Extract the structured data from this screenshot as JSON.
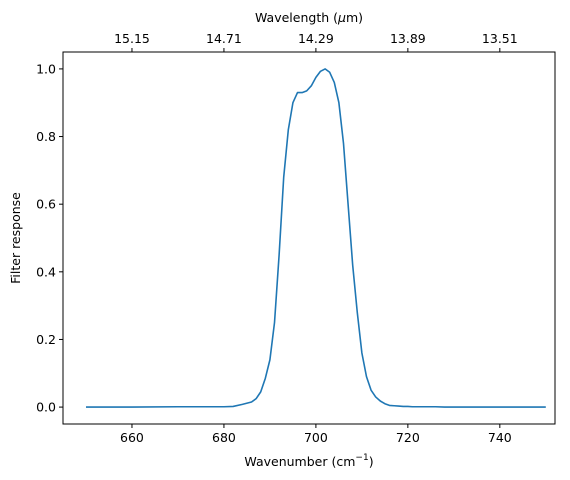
{
  "chart_data": {
    "type": "line",
    "xlabel": "Wavenumber (cm",
    "xlabel_sup": "−1",
    "xlabel_close": ")",
    "ylabel": "Filter response",
    "top_xlabel_pre": "Wavelength (",
    "top_xlabel_mu": "μ",
    "top_xlabel_post": "m)",
    "xlim": [
      645,
      752
    ],
    "ylim": [
      -0.05,
      1.05
    ],
    "xticks": [
      660,
      680,
      700,
      720,
      740
    ],
    "yticks": [
      0.0,
      0.2,
      0.4,
      0.6,
      0.8,
      1.0
    ],
    "xtick_labels": [
      "660",
      "680",
      "700",
      "720",
      "740"
    ],
    "ytick_labels": [
      "0.0",
      "0.2",
      "0.4",
      "0.6",
      "0.8",
      "1.0"
    ],
    "top_ticks": [
      660,
      680,
      700,
      720,
      740
    ],
    "top_tick_labels": [
      "15.15",
      "14.71",
      "14.29",
      "13.89",
      "13.51"
    ],
    "grid": false,
    "line_color": "#1f77b4",
    "series": [
      {
        "x": [
          650,
          660,
          670,
          675,
          680,
          682,
          684,
          686,
          687,
          688,
          689,
          690,
          691,
          692,
          693,
          694,
          695,
          696,
          697,
          698,
          699,
          700,
          701,
          702,
          703,
          704,
          705,
          706,
          707,
          708,
          709,
          710,
          711,
          712,
          713,
          714,
          715,
          716,
          717,
          718,
          719,
          720,
          721,
          722,
          724,
          726,
          728,
          730,
          740,
          750
        ],
        "y": [
          0.0,
          0.0,
          0.001,
          0.001,
          0.001,
          0.002,
          0.008,
          0.015,
          0.025,
          0.045,
          0.085,
          0.14,
          0.25,
          0.45,
          0.68,
          0.82,
          0.9,
          0.93,
          0.93,
          0.935,
          0.95,
          0.975,
          0.993,
          1.0,
          0.99,
          0.96,
          0.9,
          0.78,
          0.6,
          0.42,
          0.28,
          0.16,
          0.09,
          0.05,
          0.03,
          0.018,
          0.01,
          0.005,
          0.004,
          0.003,
          0.002,
          0.002,
          0.001,
          0.001,
          0.001,
          0.001,
          0.0,
          0.0,
          0.0,
          0.0
        ]
      }
    ]
  }
}
